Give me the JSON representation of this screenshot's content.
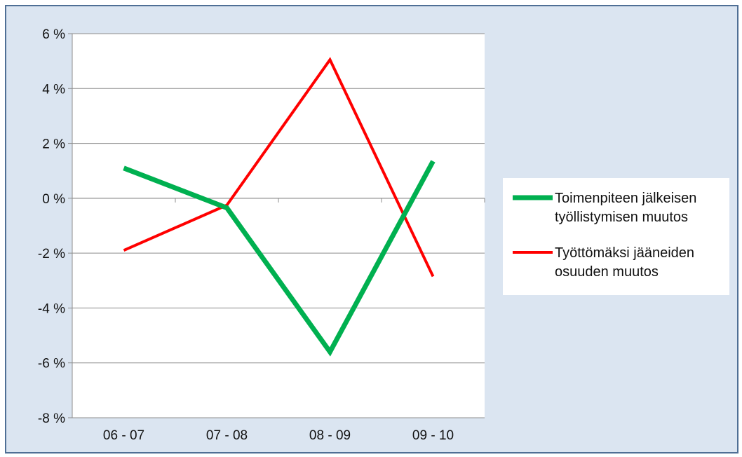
{
  "chart_data": {
    "type": "line",
    "categories": [
      "06 - 07",
      "07 - 08",
      "08 - 09",
      "09 - 10"
    ],
    "series": [
      {
        "name": "Toimenpiteen jälkeisen työllistymisen muutos",
        "name_lines": [
          "Toimenpiteen jälkeisen",
          "työllistymisen muutos"
        ],
        "values": [
          1.1,
          -0.35,
          -5.6,
          1.35
        ],
        "color": "#00b050"
      },
      {
        "name": "Työttömäksi jääneiden osuuden muutos",
        "name_lines": [
          "Työttömäksi jääneiden",
          "osuuden muutos"
        ],
        "values": [
          -1.9,
          -0.25,
          5.05,
          -2.85
        ],
        "color": "#ff0000"
      }
    ],
    "ylim": [
      -8,
      6
    ],
    "yticks": [
      -8,
      -6,
      -4,
      -2,
      0,
      2,
      4,
      6
    ],
    "ytick_labels": [
      "-8 %",
      "-6 %",
      "-4 %",
      "-2 %",
      "0 %",
      "2 %",
      "4 %",
      "6 %"
    ],
    "y_unit": "%",
    "grid": true,
    "legend_position": "right"
  }
}
